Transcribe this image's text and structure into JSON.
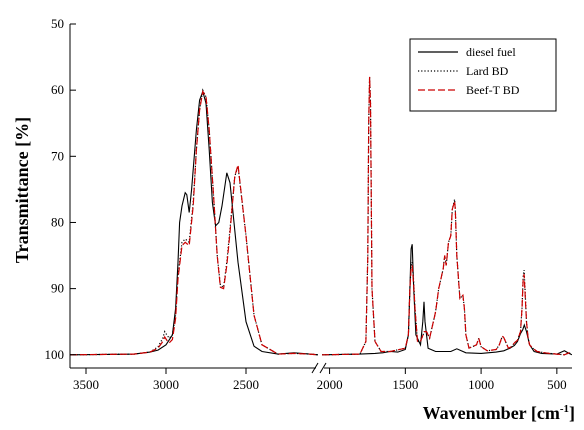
{
  "chart_data": {
    "type": "line",
    "title": "",
    "xlabel": "Wavenumber [cm",
    "xlabel_superscript": "-1",
    "xlabel_close": "]",
    "ylabel": "Transmittance [%]",
    "x_axis_broken": true,
    "x_segments": [
      {
        "xlim": [
          3600,
          2050
        ],
        "ticks": [
          3500,
          3000,
          2500
        ],
        "tick_labels": [
          "3500",
          "3000",
          "2500"
        ]
      },
      {
        "xlim": [
          2050,
          400
        ],
        "ticks": [
          2000,
          1500,
          1000,
          500
        ],
        "tick_labels": [
          "2000",
          "1500",
          "1000",
          "500"
        ]
      }
    ],
    "ylim": [
      50,
      102
    ],
    "y_inverted": true,
    "yticks": [
      50,
      60,
      70,
      80,
      90,
      100
    ],
    "ytick_labels": [
      "50",
      "60",
      "70",
      "80",
      "90",
      "100"
    ],
    "grid": false,
    "legend_position": "top-right",
    "series": [
      {
        "name": "diesel fuel",
        "color": "#000000",
        "style": "solid",
        "x": [
          3600,
          3200,
          3100,
          3050,
          3000,
          2960,
          2940,
          2925,
          2915,
          2900,
          2880,
          2870,
          2855,
          2840,
          2810,
          2790,
          2770,
          2750,
          2730,
          2710,
          2690,
          2670,
          2650,
          2620,
          2600,
          2550,
          2500,
          2450,
          2400,
          2300,
          2200,
          2100,
          2050,
          1800,
          1700,
          1650,
          1600,
          1550,
          1500,
          1480,
          1470,
          1462,
          1455,
          1445,
          1430,
          1400,
          1385,
          1377,
          1370,
          1350,
          1300,
          1200,
          1160,
          1100,
          1000,
          900,
          850,
          810,
          780,
          760,
          740,
          725,
          715,
          700,
          680,
          650,
          600,
          500,
          450,
          420,
          400
        ],
        "y": [
          100,
          99.9,
          99.6,
          99.3,
          98.5,
          97,
          93,
          86,
          80,
          77.5,
          75.5,
          75.8,
          78.5,
          75,
          66,
          61.5,
          60.2,
          62,
          69,
          77,
          80.5,
          80,
          77.5,
          72.5,
          74,
          86,
          95,
          98.7,
          99.5,
          99.9,
          99.7,
          99.9,
          100,
          99.9,
          99.8,
          99.7,
          99.5,
          99.6,
          99.2,
          97,
          90,
          84,
          83.3,
          90,
          97,
          98.5,
          95,
          92,
          95,
          99,
          99.5,
          99.5,
          99.1,
          99.7,
          99.8,
          99.6,
          99.4,
          99,
          98.6,
          98,
          96.8,
          96.2,
          95.5,
          96.5,
          98.5,
          99.5,
          99.8,
          99.9,
          99.4,
          99.8,
          100
        ]
      },
      {
        "name": "Lard BD",
        "color": "#000000",
        "style": "dotted",
        "x": [
          3600,
          3200,
          3100,
          3050,
          3020,
          3008,
          2995,
          2980,
          2960,
          2940,
          2925,
          2900,
          2880,
          2855,
          2830,
          2810,
          2790,
          2770,
          2750,
          2730,
          2700,
          2680,
          2660,
          2640,
          2620,
          2600,
          2570,
          2550,
          2500,
          2450,
          2400,
          2300,
          2200,
          2100,
          2050,
          1800,
          1760,
          1748,
          1742,
          1736,
          1730,
          1720,
          1700,
          1660,
          1600,
          1500,
          1480,
          1470,
          1462,
          1455,
          1445,
          1436,
          1420,
          1400,
          1375,
          1360,
          1340,
          1300,
          1280,
          1250,
          1240,
          1230,
          1215,
          1200,
          1190,
          1175,
          1170,
          1160,
          1140,
          1120,
          1110,
          1100,
          1080,
          1030,
          1015,
          1000,
          960,
          900,
          880,
          860,
          850,
          820,
          800,
          780,
          760,
          740,
          730,
          722,
          716,
          710,
          700,
          690,
          680,
          660,
          630,
          580,
          550,
          500,
          450,
          420,
          400
        ],
        "y": [
          100,
          99.9,
          99.6,
          98.8,
          97.5,
          96.5,
          97,
          97.5,
          97,
          94,
          88,
          83,
          82.5,
          83,
          77,
          69,
          63,
          60,
          61,
          66,
          77,
          85,
          89.5,
          89.8,
          86,
          81,
          73,
          71.5,
          82,
          94,
          98.5,
          99.9,
          99.8,
          99.9,
          100,
          99.9,
          98,
          85,
          65,
          58,
          62,
          90,
          98,
          99.5,
          99.5,
          99,
          97,
          90,
          86.5,
          86,
          89,
          93,
          98,
          98,
          96.5,
          96.5,
          97.5,
          93.5,
          90,
          87,
          85,
          86.5,
          83,
          82,
          78,
          76.5,
          78,
          85,
          91.5,
          91,
          93,
          97,
          99,
          98.5,
          97.5,
          98.8,
          99.4,
          99.2,
          98.5,
          97.2,
          97.4,
          99,
          98.8,
          98.2,
          97.8,
          96.5,
          93,
          88,
          87.2,
          90,
          95,
          97.5,
          98.5,
          99,
          99.5,
          99.7,
          99.8,
          99.9,
          100,
          99.7,
          100
        ]
      },
      {
        "name": "Beef-T BD",
        "color": "#cc0000",
        "style": "dashed",
        "x": [
          3600,
          3200,
          3100,
          3050,
          3020,
          3008,
          2995,
          2980,
          2960,
          2940,
          2925,
          2900,
          2880,
          2855,
          2830,
          2810,
          2790,
          2770,
          2750,
          2730,
          2700,
          2680,
          2660,
          2640,
          2620,
          2600,
          2570,
          2550,
          2500,
          2450,
          2400,
          2300,
          2200,
          2100,
          2050,
          1800,
          1760,
          1748,
          1742,
          1736,
          1730,
          1720,
          1700,
          1660,
          1600,
          1500,
          1480,
          1470,
          1462,
          1455,
          1445,
          1436,
          1420,
          1400,
          1375,
          1360,
          1340,
          1300,
          1280,
          1250,
          1240,
          1230,
          1215,
          1200,
          1190,
          1175,
          1170,
          1160,
          1140,
          1120,
          1110,
          1100,
          1080,
          1030,
          1015,
          1000,
          960,
          900,
          880,
          860,
          850,
          820,
          800,
          780,
          760,
          740,
          730,
          722,
          716,
          710,
          700,
          690,
          680,
          660,
          630,
          580,
          550,
          500,
          450,
          420,
          400
        ],
        "y": [
          100,
          99.9,
          99.6,
          99,
          98,
          97.3,
          97.8,
          98.2,
          97.7,
          94.5,
          88.5,
          83.5,
          83,
          83.5,
          77.5,
          69,
          63,
          60.2,
          61,
          66,
          77,
          85,
          89.8,
          90,
          86.5,
          81.5,
          73,
          71.3,
          82,
          94,
          98.5,
          99.9,
          99.8,
          99.9,
          100,
          99.9,
          98,
          85,
          65,
          58,
          62,
          90,
          98,
          99.5,
          99.5,
          99,
          97,
          90,
          87,
          86.5,
          89.5,
          93,
          98,
          98,
          96.5,
          96.5,
          97.5,
          93.5,
          90,
          87,
          85,
          86.5,
          83,
          82,
          78,
          76.8,
          78,
          85,
          91.5,
          91,
          93,
          97,
          99,
          98.5,
          97.5,
          98.8,
          99.4,
          99.2,
          98.5,
          97.2,
          97.4,
          99,
          98.8,
          98.2,
          97.8,
          96.5,
          93,
          88.5,
          87.8,
          90.5,
          95,
          97.5,
          98.5,
          99,
          99.5,
          99.7,
          99.8,
          99.9,
          100,
          99.7,
          100
        ]
      }
    ]
  }
}
